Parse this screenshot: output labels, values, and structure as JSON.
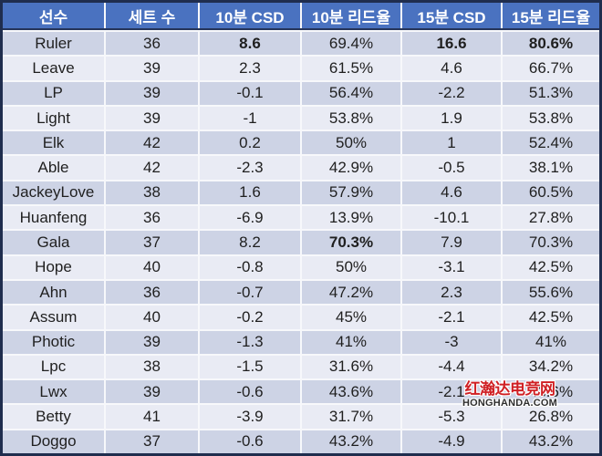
{
  "colors": {
    "outer_border": "#1f2d4e",
    "header_bg": "#4a72c0",
    "header_text": "#ffffff",
    "row_odd_bg": "#cdd3e5",
    "row_even_bg": "#e9ebf4",
    "gridline": "#f7f8fb",
    "cell_text": "#1f1f1f",
    "watermark_red": "#cf1f23",
    "watermark_dark": "#2e2e2e"
  },
  "watermark": {
    "line1": "红瀚达电竞网",
    "line2": "HONGHANDA.COM"
  },
  "chart_data": {
    "type": "table",
    "columns": [
      "선수",
      "세트 수",
      "10분 CSD",
      "10분 리드율",
      "15분 CSD",
      "15분 리드율"
    ],
    "rows": [
      [
        "Ruler",
        "36",
        "8.6",
        "69.4%",
        "16.6",
        "80.6%"
      ],
      [
        "Leave",
        "39",
        "2.3",
        "61.5%",
        "4.6",
        "66.7%"
      ],
      [
        "LP",
        "39",
        "-0.1",
        "56.4%",
        "-2.2",
        "51.3%"
      ],
      [
        "Light",
        "39",
        "-1",
        "53.8%",
        "1.9",
        "53.8%"
      ],
      [
        "Elk",
        "42",
        "0.2",
        "50%",
        "1",
        "52.4%"
      ],
      [
        "Able",
        "42",
        "-2.3",
        "42.9%",
        "-0.5",
        "38.1%"
      ],
      [
        "JackeyLove",
        "38",
        "1.6",
        "57.9%",
        "4.6",
        "60.5%"
      ],
      [
        "Huanfeng",
        "36",
        "-6.9",
        "13.9%",
        "-10.1",
        "27.8%"
      ],
      [
        "Gala",
        "37",
        "8.2",
        "70.3%",
        "7.9",
        "70.3%"
      ],
      [
        "Hope",
        "40",
        "-0.8",
        "50%",
        "-3.1",
        "42.5%"
      ],
      [
        "Ahn",
        "36",
        "-0.7",
        "47.2%",
        "2.3",
        "55.6%"
      ],
      [
        "Assum",
        "40",
        "-0.2",
        "45%",
        "-2.1",
        "42.5%"
      ],
      [
        "Photic",
        "39",
        "-1.3",
        "41%",
        "-3",
        "41%"
      ],
      [
        "Lpc",
        "38",
        "-1.5",
        "31.6%",
        "-4.4",
        "34.2%"
      ],
      [
        "Lwx",
        "39",
        "-0.6",
        "43.6%",
        "-2.1",
        "43.6%"
      ],
      [
        "Betty",
        "41",
        "-3.9",
        "31.7%",
        "-5.3",
        "26.8%"
      ],
      [
        "Doggo",
        "37",
        "-0.6",
        "43.2%",
        "-4.9",
        "43.2%"
      ]
    ],
    "bold_cells": [
      [
        0,
        2
      ],
      [
        0,
        4
      ],
      [
        0,
        5
      ],
      [
        8,
        3
      ]
    ]
  }
}
